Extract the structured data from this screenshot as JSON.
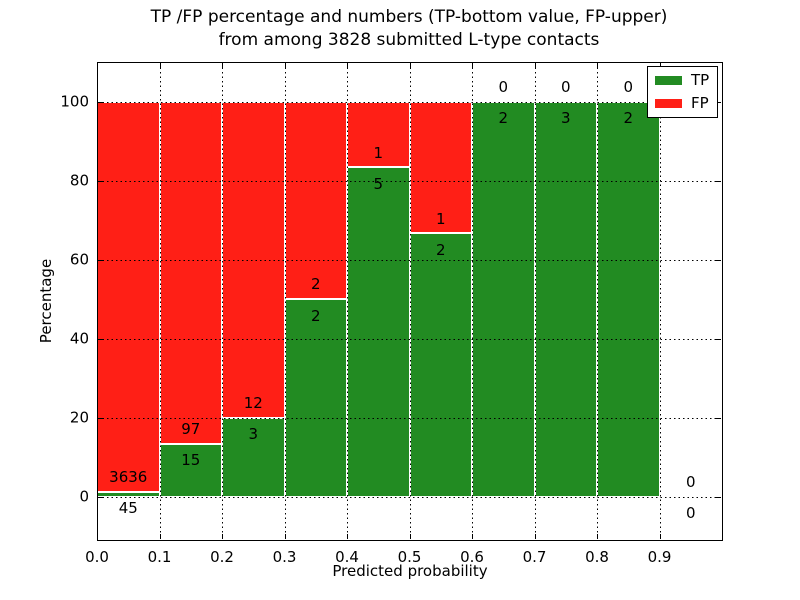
{
  "title": {
    "line1": "TP /FP percentage and numbers (TP-bottom value, FP-upper)",
    "line2": "from among 3828 submitted L-type contacts"
  },
  "axes": {
    "xlabel": "Predicted probability",
    "ylabel": "Percentage"
  },
  "legend": {
    "position": "upper right",
    "items": [
      {
        "label": "TP",
        "color": "#228b22"
      },
      {
        "label": "FP",
        "color": "#ff1f16"
      }
    ]
  },
  "colors": {
    "tp": "#228b22",
    "fp": "#ff1f16",
    "grid": "#000000",
    "frame": "#000000",
    "background": "#ffffff",
    "text": "#000000"
  },
  "chart_data": {
    "type": "bar",
    "stacked": true,
    "title": "TP /FP percentage and numbers (TP-bottom value, FP-upper) from among 3828 submitted L-type contacts",
    "xlabel": "Predicted probability",
    "ylabel": "Percentage",
    "xlim": [
      0.0,
      1.0
    ],
    "ylim": [
      -11,
      110
    ],
    "x_tick_values": [
      0.0,
      0.1,
      0.2,
      0.3,
      0.4,
      0.5,
      0.6,
      0.7,
      0.8,
      0.9
    ],
    "x_tick_labels": [
      "0.0",
      "0.1",
      "0.2",
      "0.3",
      "0.4",
      "0.5",
      "0.6",
      "0.7",
      "0.8",
      "0.9"
    ],
    "y_tick_values": [
      0,
      20,
      40,
      60,
      80,
      100
    ],
    "y_tick_labels": [
      "0",
      "20",
      "40",
      "60",
      "80",
      "100"
    ],
    "grid": true,
    "bin_width": 0.1,
    "categories": [
      "0.0-0.1",
      "0.1-0.2",
      "0.2-0.3",
      "0.3-0.4",
      "0.4-0.5",
      "0.5-0.6",
      "0.6-0.7",
      "0.7-0.8",
      "0.8-0.9",
      "0.9-1.0"
    ],
    "series": [
      {
        "name": "TP",
        "color": "#228b22",
        "counts": [
          45,
          15,
          3,
          2,
          5,
          2,
          2,
          3,
          2,
          0
        ],
        "pct": [
          1.22,
          13.39,
          20.0,
          50.0,
          83.33,
          66.67,
          100.0,
          100.0,
          100.0,
          0.0
        ]
      },
      {
        "name": "FP",
        "color": "#ff1f16",
        "counts": [
          3636,
          97,
          12,
          2,
          1,
          1,
          0,
          0,
          0,
          0
        ],
        "pct": [
          98.78,
          86.61,
          80.0,
          50.0,
          16.67,
          33.33,
          0.0,
          0.0,
          0.0,
          0.0
        ]
      }
    ],
    "annotation_note": "FP count printed just above green/red boundary, TP count just below it"
  }
}
